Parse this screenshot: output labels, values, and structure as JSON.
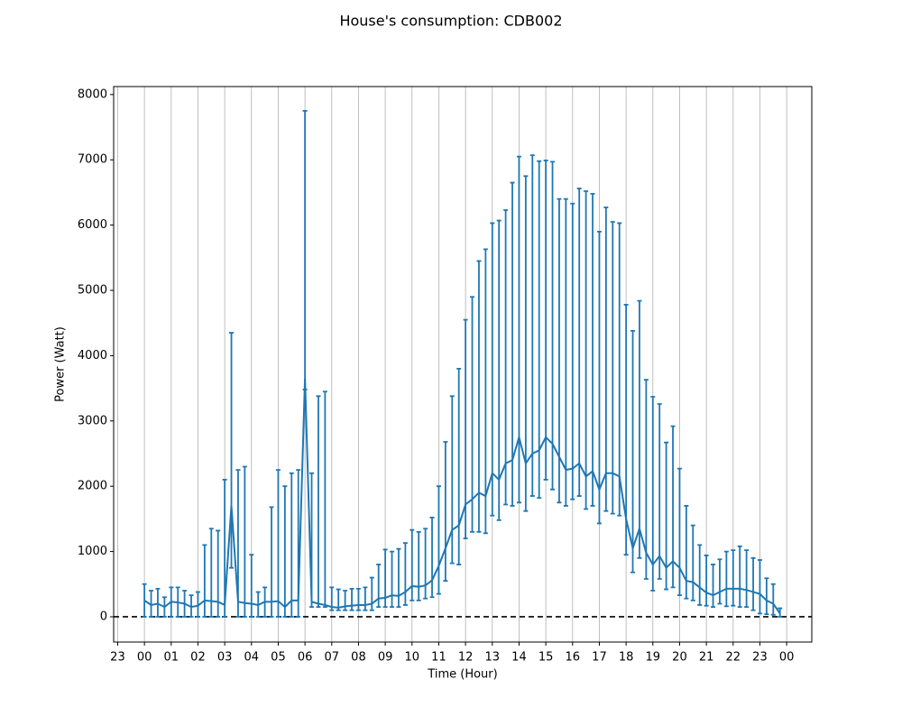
{
  "chart_data": {
    "type": "line",
    "title": "House's consumption: CDB002",
    "xlabel": "Time (Hour)",
    "ylabel": "Power (Watt)",
    "x": [
      0,
      0.25,
      0.5,
      0.75,
      1,
      1.25,
      1.5,
      1.75,
      2,
      2.25,
      2.5,
      2.75,
      3,
      3.25,
      3.5,
      3.75,
      4,
      4.25,
      4.5,
      4.75,
      5,
      5.25,
      5.5,
      5.75,
      6,
      6.25,
      6.5,
      6.75,
      7,
      7.25,
      7.5,
      7.75,
      8,
      8.25,
      8.5,
      8.75,
      9,
      9.25,
      9.5,
      9.75,
      10,
      10.25,
      10.5,
      10.75,
      11,
      11.25,
      11.5,
      11.75,
      12,
      12.25,
      12.5,
      12.75,
      13,
      13.25,
      13.5,
      13.75,
      14,
      14.25,
      14.5,
      14.75,
      15,
      15.25,
      15.5,
      15.75,
      16,
      16.25,
      16.5,
      16.75,
      17,
      17.25,
      17.5,
      17.75,
      18,
      18.25,
      18.5,
      18.75,
      19,
      19.25,
      19.5,
      19.75,
      20,
      20.25,
      20.5,
      20.75,
      21,
      21.25,
      21.5,
      21.75,
      22,
      22.25,
      22.5,
      22.75,
      23,
      23.25,
      23.5,
      23.75
    ],
    "series": [
      {
        "color": "#1f77b4",
        "values": [
          250,
          180,
          200,
          150,
          230,
          220,
          200,
          150,
          170,
          250,
          240,
          230,
          180,
          1700,
          230,
          210,
          200,
          180,
          230,
          230,
          240,
          150,
          250,
          250,
          3650,
          230,
          200,
          180,
          150,
          140,
          160,
          170,
          180,
          180,
          200,
          280,
          290,
          330,
          320,
          380,
          470,
          460,
          480,
          560,
          780,
          1050,
          1330,
          1400,
          1720,
          1800,
          1900,
          1850,
          2200,
          2100,
          2350,
          2400,
          2750,
          2350,
          2500,
          2550,
          2750,
          2650,
          2450,
          2250,
          2270,
          2350,
          2150,
          2230,
          1950,
          2200,
          2200,
          2150,
          1500,
          1050,
          1350,
          980,
          800,
          930,
          750,
          850,
          750,
          550,
          530,
          450,
          370,
          330,
          380,
          430,
          430,
          430,
          410,
          380,
          350,
          250,
          200,
          50
        ],
        "low": [
          0,
          0,
          0,
          0,
          0,
          0,
          0,
          0,
          0,
          0,
          0,
          0,
          0,
          750,
          0,
          0,
          0,
          0,
          0,
          0,
          0,
          0,
          0,
          0,
          3480,
          150,
          150,
          150,
          100,
          100,
          100,
          100,
          100,
          100,
          100,
          150,
          150,
          150,
          150,
          180,
          250,
          250,
          280,
          300,
          350,
          550,
          820,
          800,
          1200,
          1300,
          1300,
          1280,
          1550,
          1480,
          1720,
          1700,
          1750,
          1620,
          1850,
          1820,
          2100,
          1950,
          1750,
          1700,
          1800,
          1850,
          1650,
          1700,
          1430,
          1620,
          1580,
          1550,
          950,
          680,
          900,
          580,
          400,
          580,
          420,
          450,
          330,
          280,
          250,
          180,
          170,
          150,
          200,
          160,
          170,
          150,
          150,
          100,
          50,
          40,
          30,
          0
        ],
        "high": [
          500,
          400,
          430,
          300,
          450,
          450,
          400,
          330,
          380,
          1100,
          1350,
          1320,
          2100,
          4350,
          2250,
          2300,
          950,
          380,
          450,
          1680,
          2250,
          2000,
          2200,
          2250,
          7750,
          2200,
          3380,
          3450,
          450,
          420,
          400,
          430,
          430,
          450,
          600,
          800,
          1030,
          1000,
          1040,
          1130,
          1330,
          1300,
          1350,
          1520,
          2000,
          2680,
          3380,
          3800,
          4550,
          4900,
          5450,
          5630,
          6030,
          6070,
          6230,
          6650,
          7050,
          6750,
          7070,
          6980,
          6990,
          6970,
          6400,
          6400,
          6330,
          6560,
          6520,
          6480,
          5900,
          6270,
          6050,
          6030,
          4780,
          4380,
          4840,
          3630,
          3370,
          3260,
          2670,
          2920,
          2270,
          1700,
          1400,
          1100,
          940,
          800,
          880,
          1000,
          1020,
          1080,
          1020,
          900,
          870,
          590,
          500,
          130
        ]
      }
    ],
    "xlim": [
      -1.15,
      24.94
    ],
    "ylim": [
      -387,
      8122
    ],
    "xticks": [
      {
        "value": -1,
        "label": "23"
      },
      {
        "value": 0,
        "label": "00"
      },
      {
        "value": 1,
        "label": "01"
      },
      {
        "value": 2,
        "label": "02"
      },
      {
        "value": 3,
        "label": "03"
      },
      {
        "value": 4,
        "label": "04"
      },
      {
        "value": 5,
        "label": "05"
      },
      {
        "value": 6,
        "label": "06"
      },
      {
        "value": 7,
        "label": "07"
      },
      {
        "value": 8,
        "label": "08"
      },
      {
        "value": 9,
        "label": "09"
      },
      {
        "value": 10,
        "label": "10"
      },
      {
        "value": 11,
        "label": "11"
      },
      {
        "value": 12,
        "label": "12"
      },
      {
        "value": 13,
        "label": "13"
      },
      {
        "value": 14,
        "label": "14"
      },
      {
        "value": 15,
        "label": "15"
      },
      {
        "value": 16,
        "label": "16"
      },
      {
        "value": 17,
        "label": "17"
      },
      {
        "value": 18,
        "label": "18"
      },
      {
        "value": 19,
        "label": "19"
      },
      {
        "value": 20,
        "label": "20"
      },
      {
        "value": 21,
        "label": "21"
      },
      {
        "value": 22,
        "label": "22"
      },
      {
        "value": 23,
        "label": "23"
      },
      {
        "value": 24,
        "label": "00"
      }
    ],
    "yticks": [
      0,
      1000,
      2000,
      3000,
      4000,
      5000,
      6000,
      7000,
      8000
    ],
    "xgrid": true,
    "hline": 0
  }
}
